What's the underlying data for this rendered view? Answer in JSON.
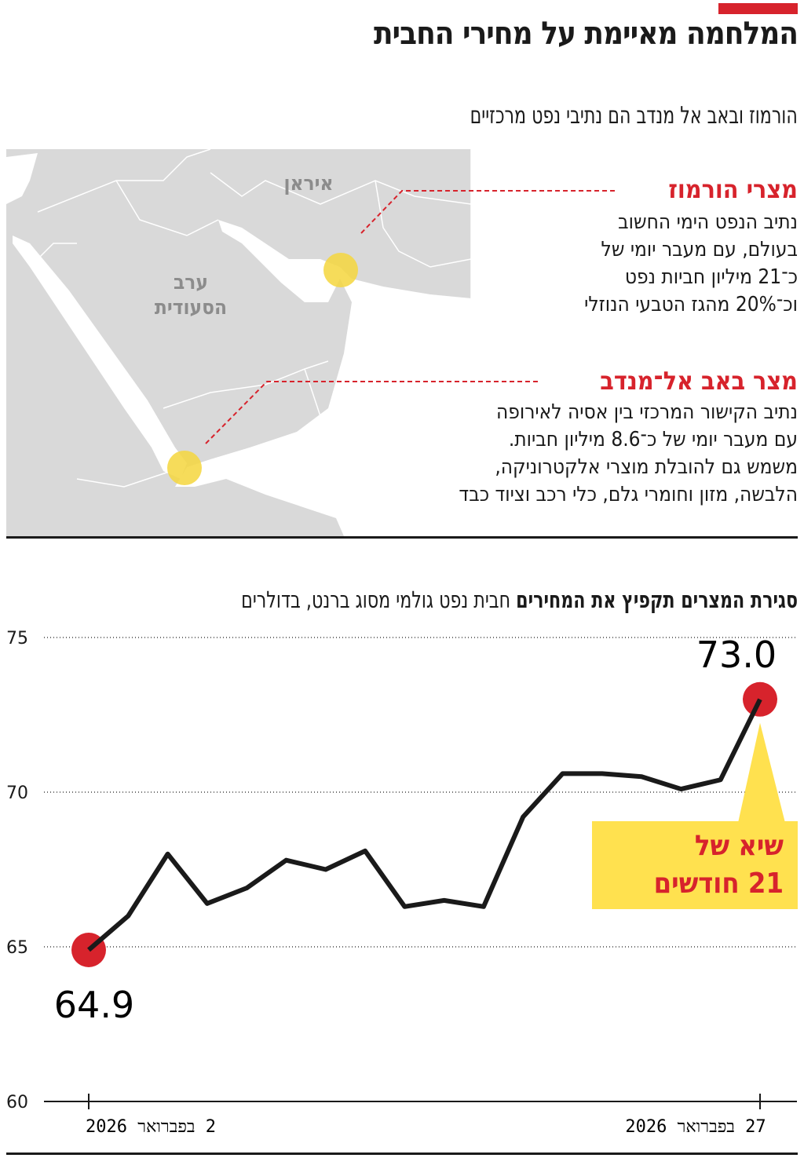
{
  "header": {
    "title": "המלחמה מאיימת על מחירי החבית",
    "subtitle": "הורמוז ובאב אל מנדב הם נתיבי נפט מרכזיים",
    "accent_color": "#d7232c"
  },
  "map": {
    "labels": {
      "iran": "איראן",
      "saudi_line1": "ערב",
      "saudi_line2": "הסעודית"
    },
    "callouts": [
      {
        "title": "מצרי הורמוז",
        "lines": [
          "נתיב הנפט הימי החשוב",
          "בעולם, עם מעבר יומי של",
          "כ־21 מיליון חביות נפט",
          "וכ־20% מהגז הטבעי הנוזלי"
        ]
      },
      {
        "title": "מצר באב אל־מנדב",
        "lines": [
          "נתיב הקישור המרכזי בין אסיה לאירופה",
          "עם מעבר יומי של כ־8.6 מיליון חביות.",
          "משמש גם להובלת מוצרי אלקטרוניקה,",
          "הלבשה, מזון וחומרי גלם, כלי רכב וציוד כבד"
        ]
      }
    ],
    "colors": {
      "land": "#d9d9d9",
      "water": "#ffffff",
      "marker": "#f5d63d"
    }
  },
  "chart_data": {
    "type": "line",
    "title": "סגירת המצרים תקפיץ את המחירים",
    "subtitle": "חבית נפט גולמי מסוג ברנט, בדולרים",
    "ylim": [
      60,
      75
    ],
    "yticks": [
      "75",
      "70",
      "65",
      "60"
    ],
    "xtick_labels": {
      "start": "2 בפברואר 2026",
      "end": "27 בפברואר 2026"
    },
    "values": [
      64.9,
      66.0,
      68.0,
      66.4,
      66.9,
      67.8,
      67.5,
      68.1,
      66.3,
      66.5,
      66.3,
      69.2,
      70.6,
      70.6,
      70.5,
      70.1,
      70.4,
      73.0
    ],
    "start_label": "64.9",
    "end_label": "73.0",
    "annotation": {
      "line1": "שיא של",
      "line2": "21 חודשים"
    },
    "grid": true,
    "colors": {
      "line": "#1a1a1a",
      "marker": "#d7232c",
      "annotation_bg": "#ffe14f"
    }
  }
}
